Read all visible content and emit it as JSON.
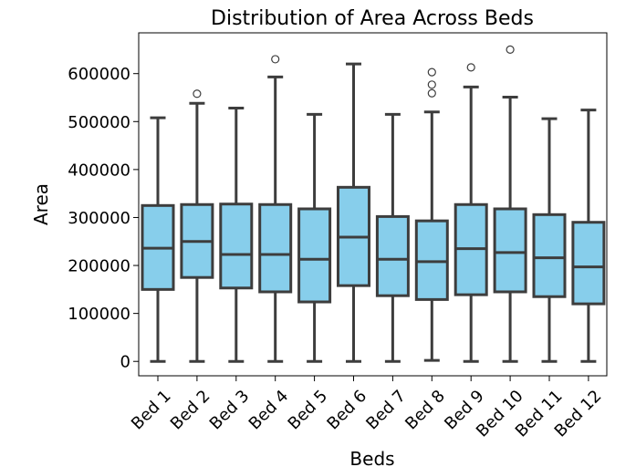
{
  "chart_data": {
    "type": "box",
    "title": "Distribution of Area Across Beds",
    "xlabel": "Beds",
    "ylabel": "Area",
    "ylim": [
      -30000,
      685000
    ],
    "yticks": [
      0,
      100000,
      200000,
      300000,
      400000,
      500000,
      600000
    ],
    "ytick_labels": [
      "0",
      "100000",
      "200000",
      "300000",
      "400000",
      "500000",
      "600000"
    ],
    "box_color": "#87CEEB",
    "line_color": "#3d3d3d",
    "grid": false,
    "categories": [
      "Bed 1",
      "Bed 2",
      "Bed 3",
      "Bed 4",
      "Bed 5",
      "Bed 6",
      "Bed 7",
      "Bed 8",
      "Bed 9",
      "Bed 10",
      "Bed 11",
      "Bed 12"
    ],
    "boxes": [
      {
        "whislo": 0,
        "q1": 150000,
        "med": 236000,
        "q3": 325000,
        "whishi": 508000,
        "fliers": []
      },
      {
        "whislo": 0,
        "q1": 175000,
        "med": 250000,
        "q3": 327000,
        "whishi": 538000,
        "fliers": [
          558000
        ]
      },
      {
        "whislo": 0,
        "q1": 153000,
        "med": 223000,
        "q3": 328000,
        "whishi": 528000,
        "fliers": []
      },
      {
        "whislo": 0,
        "q1": 145000,
        "med": 223000,
        "q3": 327000,
        "whishi": 593000,
        "fliers": [
          630000
        ]
      },
      {
        "whislo": 0,
        "q1": 124000,
        "med": 213000,
        "q3": 318000,
        "whishi": 515000,
        "fliers": []
      },
      {
        "whislo": 0,
        "q1": 158000,
        "med": 259000,
        "q3": 363000,
        "whishi": 620000,
        "fliers": []
      },
      {
        "whislo": 0,
        "q1": 137000,
        "med": 213000,
        "q3": 302000,
        "whishi": 515000,
        "fliers": []
      },
      {
        "whislo": 2000,
        "q1": 129000,
        "med": 208000,
        "q3": 293000,
        "whishi": 520000,
        "fliers": [
          559000,
          577000,
          603000
        ]
      },
      {
        "whislo": 0,
        "q1": 139000,
        "med": 235000,
        "q3": 327000,
        "whishi": 572000,
        "fliers": [
          613000
        ]
      },
      {
        "whislo": 0,
        "q1": 145000,
        "med": 227000,
        "q3": 318000,
        "whishi": 551000,
        "fliers": [
          650000
        ]
      },
      {
        "whislo": 0,
        "q1": 135000,
        "med": 216000,
        "q3": 306000,
        "whishi": 506000,
        "fliers": []
      },
      {
        "whislo": 0,
        "q1": 120000,
        "med": 197000,
        "q3": 290000,
        "whishi": 524000,
        "fliers": []
      }
    ]
  }
}
